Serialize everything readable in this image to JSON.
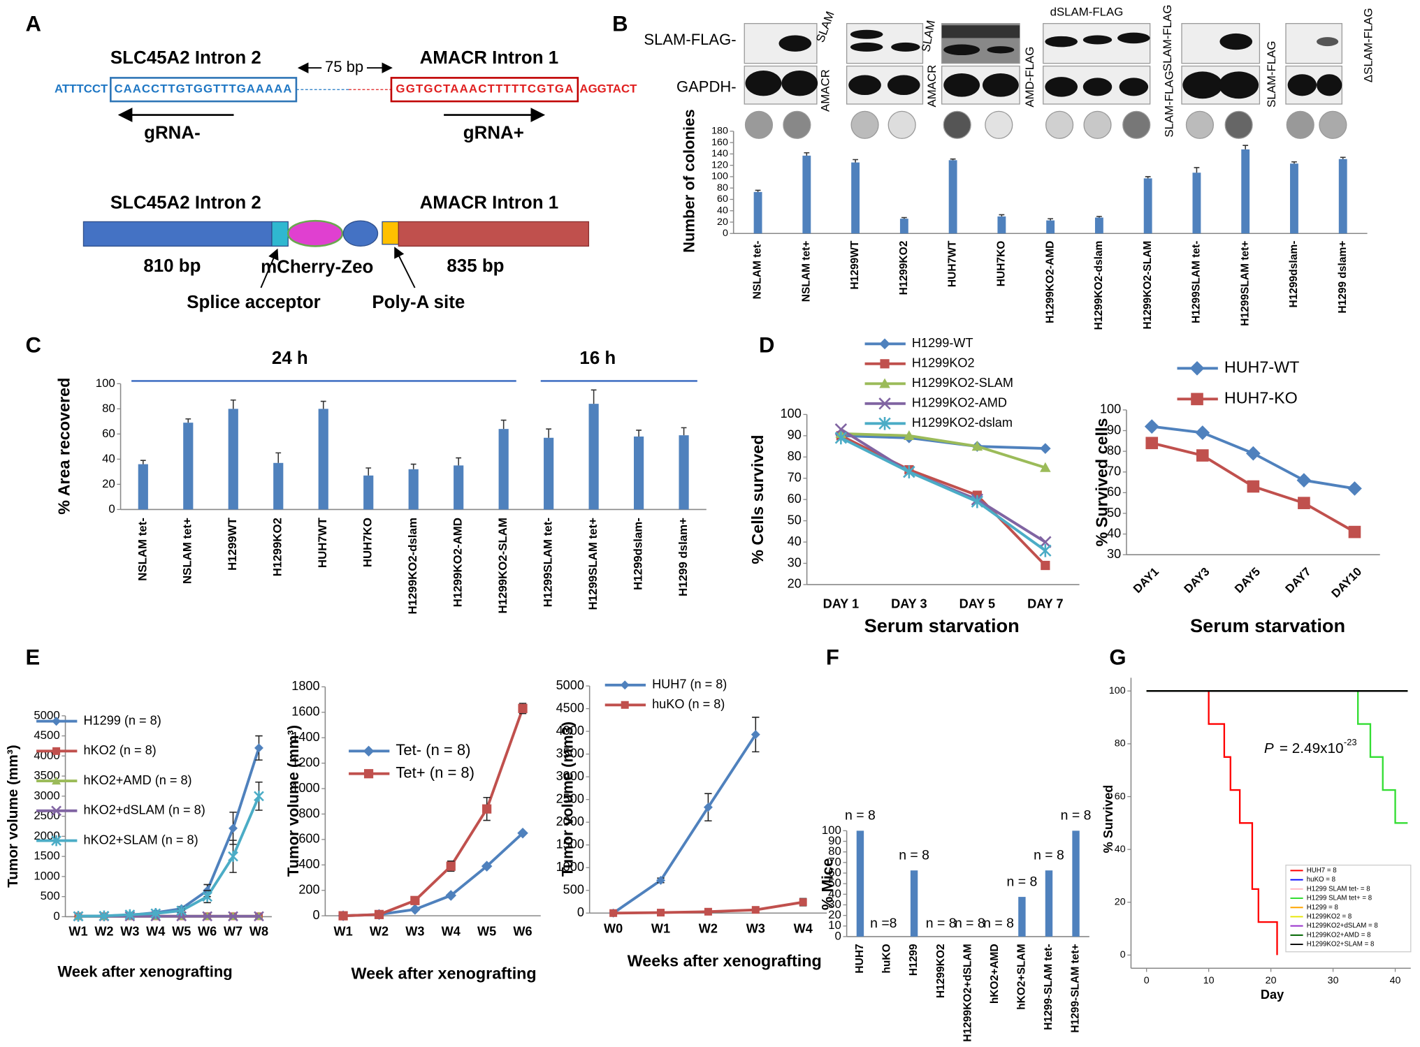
{
  "panel_labels": [
    "A",
    "B",
    "C",
    "D",
    "E",
    "F",
    "G"
  ],
  "construct": {
    "left_title": "SLC45A2 Intron 2",
    "gap": "75 bp",
    "right_title": "AMACR Intron 1",
    "seq_left_flank": "ATTTCCT",
    "seq_left_target": "CAACCTTGTGGTTTGAAAAA",
    "seq_right_target": "GGTGCTAAACTTTTTCGTGA",
    "seq_right_flank": "AGGTACT",
    "grna_minus": "gRNA-",
    "grna_plus": "gRNA+"
  },
  "donor": {
    "left_title": "SLC45A2 Intron 2",
    "right_title": "AMACR Intron 1",
    "left_size": "810 bp",
    "cassette": "mCherry-Zeo",
    "right_size": "835 bp",
    "splice": "Splice acceptor",
    "polya": "Poly-A site"
  },
  "blot": {
    "row1": "SLAM-FLAG-",
    "row2": "GAPDH-",
    "lane_labels": [
      "SLAM",
      "AMACR",
      "SLAM",
      "AMACR",
      "dSLAM-FLAG",
      "AMD-FLAG",
      "SLAM-FLAG",
      "SLAM-FLAG",
      "SLAM-FLAG",
      "ΔSLAM-FLAG"
    ]
  },
  "chart_data": [
    {
      "type": "bar",
      "ylabel": "Number of colonies",
      "categories": [
        "NSLAM tet-",
        "NSLAM tet+",
        "H1299WT",
        "H1299KO2",
        "HUH7WT",
        "HUH7KO",
        "H1299KO2-AMD",
        "H1299KO2-dslam",
        "H1299KO2-SLAM",
        "H1299SLAM tet-",
        "H1299SLAM tet+",
        "H1299dslam-",
        "H1299 dslam+"
      ],
      "values": [
        73,
        137,
        125,
        26,
        129,
        30,
        23,
        28,
        97,
        107,
        148,
        123,
        131
      ],
      "errors": [
        3,
        5,
        5,
        2,
        2,
        3,
        3,
        2,
        3,
        9,
        7,
        3,
        3
      ],
      "color": "#4f81bd",
      "ylim": [
        0,
        180
      ],
      "yticks": [
        0,
        20,
        40,
        60,
        80,
        100,
        120,
        140,
        160,
        180
      ]
    },
    {
      "type": "bar",
      "ylabel": "% Area recovered",
      "annotations": [
        "24 h",
        "16 h"
      ],
      "categories": [
        "NSLAM tet-",
        "NSLAM tet+",
        "H1299WT",
        "H1299KO2",
        "HUH7WT",
        "HUH7KO",
        "H1299KO2-dslam",
        "H1299KO2-AMD",
        "H1299KO2-SLAM",
        "H1299SLAM tet-",
        "H1299SLAM tet+",
        "H1299dslam-",
        "H1299 dslam+"
      ],
      "values": [
        36,
        69,
        80,
        37,
        80,
        27,
        32,
        35,
        64,
        57,
        84,
        58,
        59
      ],
      "errors": [
        3,
        3,
        7,
        8,
        6,
        6,
        4,
        6,
        7,
        7,
        11,
        5,
        6
      ],
      "color": "#4f81bd",
      "ylim": [
        0,
        100
      ],
      "yticks": [
        0,
        20,
        40,
        60,
        80,
        100
      ]
    },
    {
      "type": "line",
      "ylabel": "% Cells survived",
      "xlabel": "Serum starvation",
      "categories": [
        "DAY 1",
        "DAY 3",
        "DAY 5",
        "DAY 7"
      ],
      "series": [
        {
          "name": "H1299-WT",
          "color": "#4f81bd",
          "marker": "diamond",
          "values": [
            90,
            89,
            85,
            84
          ]
        },
        {
          "name": "H1299KO2",
          "color": "#c0504d",
          "marker": "square",
          "values": [
            90,
            74,
            62,
            29
          ]
        },
        {
          "name": "H1299KO2-SLAM",
          "color": "#9bbb59",
          "marker": "triangle",
          "values": [
            91,
            90,
            85,
            75
          ]
        },
        {
          "name": "H1299KO2-AMD",
          "color": "#8064a2",
          "marker": "x",
          "values": [
            93,
            73,
            60,
            40
          ]
        },
        {
          "name": "H1299KO2-dslam",
          "color": "#4bacc6",
          "marker": "star",
          "values": [
            89,
            73,
            59,
            36
          ]
        }
      ],
      "ylim": [
        20,
        100
      ],
      "yticks": [
        20,
        30,
        40,
        50,
        60,
        70,
        80,
        90,
        100
      ]
    },
    {
      "type": "line",
      "ylabel": "% Survived cells",
      "xlabel": "Serum starvation",
      "categories": [
        "DAY1",
        "DAY3",
        "DAY5",
        "DAY7",
        "DAY10"
      ],
      "series": [
        {
          "name": "HUH7-WT",
          "color": "#4f81bd",
          "marker": "diamond",
          "values": [
            92,
            89,
            79,
            66,
            62
          ]
        },
        {
          "name": "HUH7-KO",
          "color": "#c0504d",
          "marker": "square",
          "values": [
            84,
            78,
            63,
            55,
            41
          ]
        }
      ],
      "ylim": [
        30,
        100
      ],
      "yticks": [
        30,
        40,
        50,
        60,
        70,
        80,
        90,
        100
      ]
    },
    {
      "type": "line",
      "ylabel": "Tumor volume (mm³)",
      "xlabel": "Week after xenografting",
      "categories": [
        "W1",
        "W2",
        "W3",
        "W4",
        "W5",
        "W6",
        "W7",
        "W8"
      ],
      "series": [
        {
          "name": "H1299 (n = 8)",
          "color": "#4f81bd",
          "marker": "diamond",
          "values": [
            10,
            20,
            40,
            100,
            200,
            650,
            2200,
            4200
          ],
          "errors": [
            0,
            0,
            0,
            0,
            50,
            150,
            400,
            300
          ]
        },
        {
          "name": "hKO2 (n = 8)",
          "color": "#c0504d",
          "marker": "square",
          "values": [
            10,
            10,
            10,
            10,
            10,
            10,
            10,
            10
          ]
        },
        {
          "name": "hKO2+AMD (n = 8)",
          "color": "#9bbb59",
          "marker": "triangle",
          "values": [
            10,
            10,
            10,
            10,
            10,
            10,
            10,
            10
          ]
        },
        {
          "name": "hKO2+dSLAM (n = 8)",
          "color": "#8064a2",
          "marker": "x",
          "values": [
            10,
            10,
            10,
            10,
            10,
            10,
            10,
            10
          ]
        },
        {
          "name": "hKO2+SLAM (n = 8)",
          "color": "#4bacc6",
          "marker": "star",
          "values": [
            10,
            20,
            50,
            80,
            150,
            500,
            1500,
            3000
          ],
          "errors": [
            0,
            0,
            0,
            0,
            50,
            150,
            400,
            350
          ]
        }
      ],
      "ylim": [
        0,
        5000
      ],
      "yticks": [
        0,
        500,
        1000,
        1500,
        2000,
        2500,
        3000,
        3500,
        4000,
        4500,
        5000
      ]
    },
    {
      "type": "line",
      "ylabel": "Tumor volume (mm³)",
      "xlabel": "Week after xenografting",
      "categories": [
        "W1",
        "W2",
        "W3",
        "W4",
        "W5",
        "W6"
      ],
      "series": [
        {
          "name": "Tet- (n = 8)",
          "color": "#4f81bd",
          "marker": "diamond",
          "values": [
            0,
            10,
            50,
            160,
            390,
            650
          ]
        },
        {
          "name": "Tet+ (n = 8)",
          "color": "#c0504d",
          "marker": "square",
          "values": [
            0,
            10,
            120,
            390,
            840,
            1630
          ],
          "errors": [
            0,
            0,
            0,
            40,
            90,
            40
          ]
        }
      ],
      "ylim": [
        0,
        1800
      ],
      "yticks": [
        0,
        200,
        400,
        600,
        800,
        1000,
        1200,
        1400,
        1600,
        1800
      ]
    },
    {
      "type": "line",
      "ylabel": "Tumor volume (mm3)",
      "xlabel": "Weeks after xenografting",
      "categories": [
        "W0",
        "W1",
        "W2",
        "W3",
        "W4"
      ],
      "series": [
        {
          "name": "HUH7 (n = 8)",
          "color": "#4f81bd",
          "marker": "diamond",
          "values": [
            0,
            720,
            2330,
            3930,
            null
          ],
          "errors": [
            0,
            50,
            300,
            380,
            null
          ]
        },
        {
          "name": "huKO (n = 8)",
          "color": "#c0504d",
          "marker": "square",
          "values": [
            0,
            10,
            30,
            70,
            240
          ],
          "errors": [
            0,
            0,
            0,
            0,
            80
          ]
        }
      ],
      "ylim": [
        0,
        5000
      ],
      "yticks": [
        0,
        500,
        1000,
        1500,
        2000,
        2500,
        3000,
        3500,
        4000,
        4500,
        5000
      ]
    },
    {
      "type": "bar",
      "ylabel": "% Mice",
      "categories": [
        "HUH7",
        "huKO",
        "H1299",
        "H1299KO2",
        "H1299KO2+dSLAM",
        "hKO2+AMD",
        "hKO2+SLAM",
        "H1299-SLAM tet-",
        "H1299-SLAM tet+"
      ],
      "values": [
        100,
        0,
        62.5,
        0,
        0,
        0,
        37.5,
        62.5,
        100
      ],
      "bar_notes": [
        "n = 8",
        "n =8",
        "n = 8",
        "n = 8",
        "n = 8",
        "n = 8",
        "n = 8",
        "n = 8",
        "n = 8"
      ],
      "color": "#4f81bd",
      "ylim": [
        0,
        100
      ],
      "yticks": [
        0,
        10,
        20,
        30,
        40,
        50,
        60,
        70,
        80,
        90,
        100
      ]
    },
    {
      "type": "step",
      "ylabel": "% Survived",
      "xlabel": "Day",
      "annotation": {
        "p": "P",
        "text": "= 2.49x10",
        "exp": "-23"
      },
      "series": [
        {
          "name": "HUH7 = 8",
          "color": "#ff0000",
          "x": [
            0,
            10,
            12.5,
            13.5,
            15,
            17,
            18,
            21
          ],
          "values": [
            100,
            87.5,
            75,
            62.5,
            50,
            25,
            12.5,
            0
          ]
        },
        {
          "name": "huKO = 8",
          "color": "#0000ff",
          "x": [
            0,
            42
          ],
          "values": [
            100,
            100
          ]
        },
        {
          "name": "H1299 SLAM tet- = 8",
          "color": "#ffb6c1",
          "x": [
            0,
            42
          ],
          "values": [
            100,
            100
          ]
        },
        {
          "name": "H1299 SLAM tet+ = 8",
          "color": "#33dd33",
          "x": [
            0,
            34,
            36,
            38,
            40,
            42
          ],
          "values": [
            100,
            87.5,
            75,
            62.5,
            50,
            50
          ]
        },
        {
          "name": "H1299 = 8",
          "color": "#ffa500",
          "x": [
            0,
            42
          ],
          "values": [
            100,
            100
          ]
        },
        {
          "name": "H1299KO2 = 8",
          "color": "#e6e600",
          "x": [
            0,
            42
          ],
          "values": [
            100,
            100
          ]
        },
        {
          "name": "H1299KO2+dSLAM = 8",
          "color": "#9932cc",
          "x": [
            0,
            42
          ],
          "values": [
            100,
            100
          ]
        },
        {
          "name": "H1299KO2+AMD = 8",
          "color": "#006400",
          "x": [
            0,
            42
          ],
          "values": [
            100,
            100
          ]
        },
        {
          "name": "H1299KO2+SLAM = 8",
          "color": "#000000",
          "x": [
            0,
            42
          ],
          "values": [
            100,
            100
          ]
        }
      ],
      "xlim": [
        -2.5,
        42.5
      ],
      "xticks": [
        0,
        10,
        20,
        30,
        40
      ],
      "ylim": [
        -5,
        105
      ],
      "yticks": [
        0,
        20,
        40,
        60,
        80,
        100
      ]
    }
  ]
}
